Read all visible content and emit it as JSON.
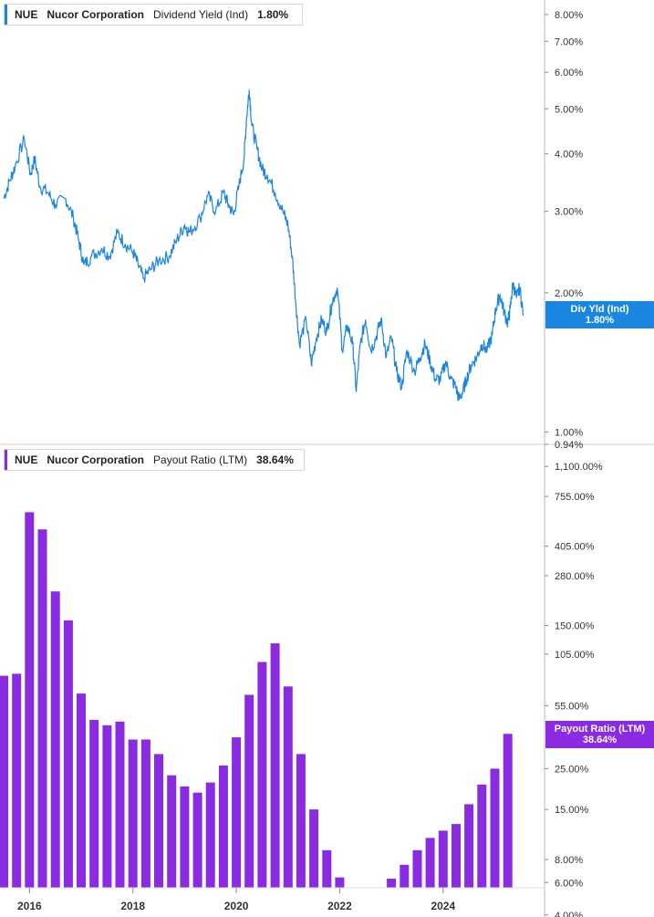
{
  "chart_data": [
    {
      "type": "line",
      "ticker": "NUE",
      "company": "Nucor Corporation",
      "metric": "Dividend Yield (Ind)",
      "current_value_label": "1.80%",
      "badge_label": "Div Yld (Ind)",
      "badge_value": "1.80%",
      "color": "#1a86e0",
      "y_scale": "log",
      "ylim": [
        0.94,
        8.6
      ],
      "y_ticks": [
        {
          "v": 8.0,
          "label": "8.00%"
        },
        {
          "v": 7.0,
          "label": "7.00%"
        },
        {
          "v": 6.0,
          "label": "6.00%"
        },
        {
          "v": 5.0,
          "label": "5.00%"
        },
        {
          "v": 4.0,
          "label": "4.00%"
        },
        {
          "v": 3.0,
          "label": "3.00%"
        },
        {
          "v": 2.0,
          "label": "2.00%"
        },
        {
          "v": 1.0,
          "label": "1.00%"
        },
        {
          "v": 0.94,
          "label": "0.94%"
        }
      ],
      "points": [
        [
          2015.5,
          3.2
        ],
        [
          2015.62,
          3.5
        ],
        [
          2015.72,
          3.75
        ],
        [
          2015.9,
          4.3
        ],
        [
          2016.02,
          3.6
        ],
        [
          2016.1,
          3.9
        ],
        [
          2016.2,
          3.4
        ],
        [
          2016.35,
          3.3
        ],
        [
          2016.5,
          3.1
        ],
        [
          2016.7,
          3.2
        ],
        [
          2016.85,
          2.9
        ],
        [
          2016.95,
          2.6
        ],
        [
          2017.05,
          2.3
        ],
        [
          2017.2,
          2.4
        ],
        [
          2017.4,
          2.5
        ],
        [
          2017.55,
          2.4
        ],
        [
          2017.7,
          2.7
        ],
        [
          2017.85,
          2.55
        ],
        [
          2018.0,
          2.45
        ],
        [
          2018.1,
          2.3
        ],
        [
          2018.2,
          2.15
        ],
        [
          2018.35,
          2.25
        ],
        [
          2018.5,
          2.35
        ],
        [
          2018.7,
          2.4
        ],
        [
          2018.85,
          2.6
        ],
        [
          2019.0,
          2.8
        ],
        [
          2019.1,
          2.7
        ],
        [
          2019.3,
          2.9
        ],
        [
          2019.45,
          3.25
        ],
        [
          2019.6,
          3.0
        ],
        [
          2019.75,
          3.3
        ],
        [
          2019.85,
          3.1
        ],
        [
          2019.95,
          2.95
        ],
        [
          2020.05,
          3.4
        ],
        [
          2020.15,
          3.9
        ],
        [
          2020.2,
          4.8
        ],
        [
          2020.25,
          5.5
        ],
        [
          2020.3,
          4.6
        ],
        [
          2020.4,
          4.1
        ],
        [
          2020.5,
          3.7
        ],
        [
          2020.6,
          3.6
        ],
        [
          2020.75,
          3.3
        ],
        [
          2020.9,
          3.0
        ],
        [
          2021.0,
          2.8
        ],
        [
          2021.08,
          2.4
        ],
        [
          2021.15,
          1.9
        ],
        [
          2021.22,
          1.55
        ],
        [
          2021.35,
          1.75
        ],
        [
          2021.45,
          1.4
        ],
        [
          2021.55,
          1.6
        ],
        [
          2021.65,
          1.75
        ],
        [
          2021.75,
          1.65
        ],
        [
          2021.85,
          1.9
        ],
        [
          2021.95,
          2.05
        ],
        [
          2022.05,
          1.5
        ],
        [
          2022.15,
          1.7
        ],
        [
          2022.25,
          1.55
        ],
        [
          2022.32,
          1.22
        ],
        [
          2022.4,
          1.55
        ],
        [
          2022.5,
          1.75
        ],
        [
          2022.6,
          1.5
        ],
        [
          2022.7,
          1.6
        ],
        [
          2022.8,
          1.75
        ],
        [
          2022.9,
          1.45
        ],
        [
          2023.0,
          1.6
        ],
        [
          2023.1,
          1.35
        ],
        [
          2023.2,
          1.25
        ],
        [
          2023.3,
          1.5
        ],
        [
          2023.45,
          1.35
        ],
        [
          2023.55,
          1.45
        ],
        [
          2023.65,
          1.55
        ],
        [
          2023.75,
          1.42
        ],
        [
          2023.85,
          1.3
        ],
        [
          2023.95,
          1.3
        ],
        [
          2024.05,
          1.42
        ],
        [
          2024.15,
          1.3
        ],
        [
          2024.25,
          1.25
        ],
        [
          2024.3,
          1.18
        ],
        [
          2024.38,
          1.22
        ],
        [
          2024.45,
          1.3
        ],
        [
          2024.55,
          1.4
        ],
        [
          2024.65,
          1.45
        ],
        [
          2024.75,
          1.55
        ],
        [
          2024.85,
          1.5
        ],
        [
          2024.95,
          1.62
        ],
        [
          2025.02,
          1.85
        ],
        [
          2025.1,
          1.98
        ],
        [
          2025.18,
          1.82
        ],
        [
          2025.25,
          1.72
        ],
        [
          2025.3,
          1.85
        ],
        [
          2025.35,
          2.1
        ],
        [
          2025.42,
          1.95
        ],
        [
          2025.48,
          2.05
        ],
        [
          2025.55,
          1.8
        ]
      ]
    },
    {
      "type": "bar",
      "ticker": "NUE",
      "company": "Nucor Corporation",
      "metric": "Payout Ratio (LTM)",
      "current_value_label": "38.64%",
      "badge_label": "Payout Ratio (LTM)",
      "badge_value": "38.64%",
      "color": "#8a2be2",
      "y_scale": "log",
      "ylim": [
        3.9,
        1450
      ],
      "y_ticks": [
        {
          "v": 1100,
          "label": "1,100.00%"
        },
        {
          "v": 755,
          "label": "755.00%"
        },
        {
          "v": 405,
          "label": "405.00%"
        },
        {
          "v": 280,
          "label": "280.00%"
        },
        {
          "v": 150,
          "label": "150.00%"
        },
        {
          "v": 105,
          "label": "105.00%"
        },
        {
          "v": 55,
          "label": "55.00%"
        },
        {
          "v": 25,
          "label": "25.00%"
        },
        {
          "v": 15,
          "label": "15.00%"
        },
        {
          "v": 8,
          "label": "8.00%"
        },
        {
          "v": 6,
          "label": "6.00%"
        },
        {
          "v": 4,
          "label": "4.00%"
        }
      ],
      "x": [
        2015.5,
        2015.75,
        2016.0,
        2016.25,
        2016.5,
        2016.75,
        2017.0,
        2017.25,
        2017.5,
        2017.75,
        2018.0,
        2018.25,
        2018.5,
        2018.75,
        2019.0,
        2019.25,
        2019.5,
        2019.75,
        2020.0,
        2020.25,
        2020.5,
        2020.75,
        2021.0,
        2021.25,
        2021.5,
        2021.75,
        2022.0,
        2022.25,
        2022.5,
        2022.75,
        2023.0,
        2023.25,
        2023.5,
        2023.75,
        2024.0,
        2024.25,
        2024.5,
        2024.75,
        2025.0,
        2025.25,
        2025.5
      ],
      "values": [
        80,
        82,
        620,
        500,
        230,
        160,
        64,
        46,
        43,
        45,
        36,
        36,
        30,
        23,
        20,
        18.5,
        21,
        26,
        37,
        63,
        95,
        120,
        70,
        30,
        15,
        9,
        6.4,
        5.4,
        4.8,
        5.2,
        6.3,
        7.5,
        9,
        10.5,
        11.5,
        12.5,
        16,
        20.5,
        25,
        38.64,
        0
      ],
      "x_ticks": [
        {
          "v": 2016,
          "label": "2016"
        },
        {
          "v": 2018,
          "label": "2018"
        },
        {
          "v": 2020,
          "label": "2020"
        },
        {
          "v": 2022,
          "label": "2022"
        },
        {
          "v": 2024,
          "label": "2024"
        }
      ]
    }
  ]
}
